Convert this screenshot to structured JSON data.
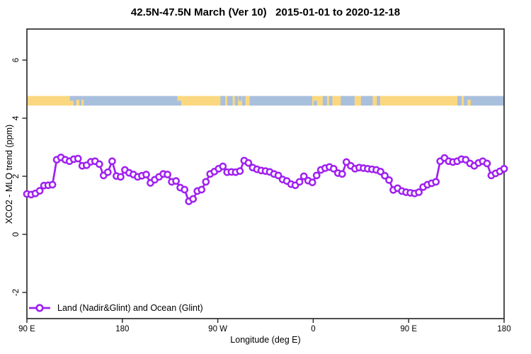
{
  "title": "42.5N-47.5N March (Ver 10)   2015-01-01 to 2020-12-18",
  "chart_data": {
    "type": "line",
    "title": "42.5N-47.5N March (Ver 10)   2015-01-01 to 2020-12-18",
    "xlabel": "Longitude (deg E)",
    "ylabel": "XCO2 - MLO trend (ppm)",
    "grid": false,
    "x_axis": {
      "range_deg": [
        0,
        450
      ],
      "ticks": [
        {
          "deg": 0,
          "label": "90 E"
        },
        {
          "deg": 90,
          "label": "180"
        },
        {
          "deg": 180,
          "label": "90 W"
        },
        {
          "deg": 270,
          "label": "0"
        },
        {
          "deg": 360,
          "label": "90 E"
        },
        {
          "deg": 450,
          "label": "180"
        }
      ]
    },
    "y_axis": {
      "lim": [
        -2.9,
        7.07
      ],
      "ticks": [
        {
          "value": -2,
          "label": "-2"
        },
        {
          "value": 0,
          "label": "0"
        },
        {
          "value": 2,
          "label": "2"
        },
        {
          "value": 4,
          "label": "4"
        },
        {
          "value": 6,
          "label": "6"
        }
      ]
    },
    "legend": {
      "label": "Land (Nadir&Glint) and Ocean (Glint)",
      "position": "bottom-left"
    },
    "series": [
      {
        "name": "Land (Nadir&Glint) and Ocean (Glint)",
        "color": "#A020F0",
        "marker": "open-circle",
        "x_start_deg": 0,
        "x_step_deg": 4.018,
        "values": [
          1.39,
          1.37,
          1.41,
          1.5,
          1.68,
          1.69,
          1.71,
          2.57,
          2.65,
          2.57,
          2.52,
          2.59,
          2.61,
          2.36,
          2.38,
          2.5,
          2.52,
          2.42,
          2.03,
          2.14,
          2.52,
          2.01,
          1.98,
          2.22,
          2.12,
          2.06,
          1.98,
          2.02,
          2.06,
          1.77,
          1.88,
          1.98,
          2.08,
          2.06,
          1.81,
          1.84,
          1.61,
          1.54,
          1.14,
          1.22,
          1.49,
          1.54,
          1.81,
          2.08,
          2.16,
          2.26,
          2.34,
          2.14,
          2.15,
          2.14,
          2.18,
          2.54,
          2.46,
          2.3,
          2.24,
          2.2,
          2.18,
          2.15,
          2.08,
          2.03,
          1.89,
          1.84,
          1.73,
          1.69,
          1.81,
          2.0,
          1.85,
          1.79,
          2.03,
          2.22,
          2.28,
          2.32,
          2.26,
          2.11,
          2.08,
          2.49,
          2.36,
          2.26,
          2.3,
          2.28,
          2.26,
          2.24,
          2.22,
          2.16,
          2.02,
          1.87,
          1.53,
          1.59,
          1.49,
          1.45,
          1.43,
          1.41,
          1.45,
          1.63,
          1.71,
          1.76,
          1.81,
          2.52,
          2.63,
          2.52,
          2.49,
          2.52,
          2.59,
          2.57,
          2.44,
          2.36,
          2.46,
          2.52,
          2.44,
          2.03,
          2.1,
          2.17,
          2.26
        ]
      }
    ],
    "map_strip": {
      "center_value": 4.6,
      "land_color": "#FBD87F",
      "ocean_color": "#A9BFDE",
      "ocean_segments_deg": [
        [
          44,
          142
        ],
        [
          182.5,
          187
        ],
        [
          189,
          194
        ],
        [
          196,
          199
        ],
        [
          203,
          206
        ],
        [
          210,
          269
        ],
        [
          279,
          283
        ],
        [
          285,
          288
        ],
        [
          296,
          309
        ],
        [
          315,
          326
        ],
        [
          330,
          333
        ],
        [
          406,
          410
        ],
        [
          412,
          450
        ]
      ],
      "island_patches_deg": [
        [
          46.5,
          49.5
        ],
        [
          51.5,
          53.5
        ],
        [
          415.5,
          418.5
        ]
      ],
      "coast_patches": [
        {
          "range": [
            40.5,
            44
          ],
          "half": "top",
          "type": "ocean"
        },
        {
          "range": [
            142,
            145.5
          ],
          "half": "bottom",
          "type": "ocean"
        },
        {
          "range": [
            199.5,
            202.5
          ],
          "half": "top",
          "type": "ocean"
        },
        {
          "range": [
            270.5,
            273.5
          ],
          "half": "bottom",
          "type": "ocean"
        }
      ]
    }
  },
  "colors": {
    "accent": "#A020F0",
    "land": "#FBD87F",
    "ocean": "#A9BFDE",
    "axis": "#303030",
    "text": "#000000",
    "background": "#FFFFFF"
  }
}
